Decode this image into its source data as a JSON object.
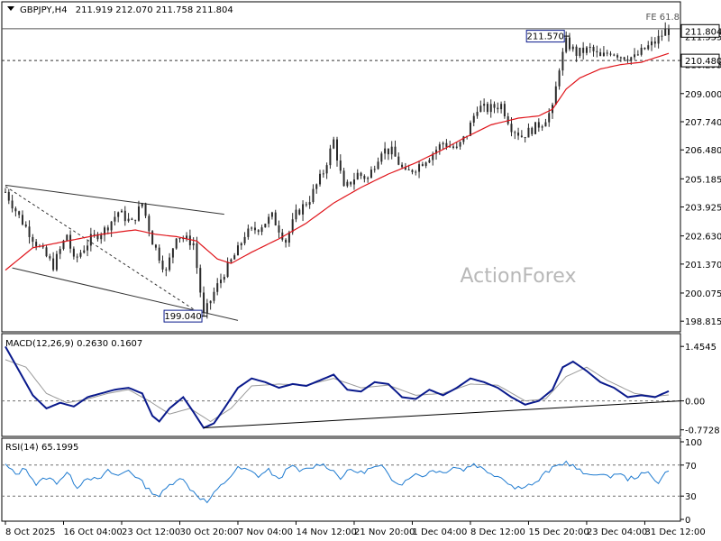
{
  "header": {
    "symbol": "GBPJPY,H4",
    "ohlc": "211.919 212.070 211.758 211.804"
  },
  "watermark": "ActionForex",
  "fib_label": "FE 61.8",
  "colors": {
    "candle": "#2a2a2a",
    "ma": "#e0151b",
    "macd": "#0a1a8c",
    "signal": "#9a9a9a",
    "rsi": "#1f7bd0",
    "grid_dash": "#707070",
    "axis_bg": "#ffffff"
  },
  "chart_data": [
    {
      "type": "candlestick",
      "panel": "price",
      "ylim": [
        198.5,
        212.3
      ],
      "y_ticks": [
        "211.555",
        "210.295",
        "209.000",
        "207.740",
        "206.480",
        "205.185",
        "203.925",
        "202.630",
        "201.370",
        "200.075",
        "198.815"
      ],
      "y_tick_values": [
        211.555,
        210.295,
        209.0,
        207.74,
        206.48,
        205.185,
        203.925,
        202.63,
        201.37,
        200.075,
        198.815
      ],
      "current_price_label": "211.804",
      "current_price": 211.804,
      "level_label": "210.480",
      "level_price": 210.48,
      "fib_level": 211.9,
      "annotations": [
        {
          "text": "211.570",
          "value": 211.57,
          "at_index": 164
        },
        {
          "text": "199.040",
          "value": 199.04,
          "at_index": 58
        }
      ],
      "x_tick_labels": [
        "8 Oct 2025",
        "16 Oct 04:00",
        "23 Oct 12:00",
        "30 Oct 20:00",
        "7 Nov 04:00",
        "14 Nov 12:00",
        "21 Nov 20:00",
        "1 Dec 04:00",
        "8 Dec 12:00",
        "15 Dec 20:00",
        "23 Dec 04:00",
        "31 Dec 12:00"
      ],
      "x_tick_indices": [
        0,
        17,
        34,
        51,
        68,
        85,
        102,
        119,
        136,
        153,
        170,
        187
      ],
      "anchors": [
        [
          0,
          204.6
        ],
        [
          4,
          203.5
        ],
        [
          9,
          202.3
        ],
        [
          14,
          201.3
        ],
        [
          18,
          202.7
        ],
        [
          20,
          201.5
        ],
        [
          25,
          202.5
        ],
        [
          29,
          202.9
        ],
        [
          33,
          203.7
        ],
        [
          37,
          203.2
        ],
        [
          40,
          204.1
        ],
        [
          43,
          202.4
        ],
        [
          47,
          201.0
        ],
        [
          50,
          202.7
        ],
        [
          55,
          202.3
        ],
        [
          58,
          199.05
        ],
        [
          61,
          200.1
        ],
        [
          64,
          201.0
        ],
        [
          68,
          202.0
        ],
        [
          70,
          202.7
        ],
        [
          74,
          203.0
        ],
        [
          78,
          203.5
        ],
        [
          82,
          202.4
        ],
        [
          85,
          203.6
        ],
        [
          89,
          204.3
        ],
        [
          93,
          205.5
        ],
        [
          96,
          206.9
        ],
        [
          99,
          204.7
        ],
        [
          103,
          205.4
        ],
        [
          106,
          205.2
        ],
        [
          110,
          206.5
        ],
        [
          113,
          206.4
        ],
        [
          117,
          205.4
        ],
        [
          120,
          205.7
        ],
        [
          124,
          206.2
        ],
        [
          128,
          206.8
        ],
        [
          132,
          206.5
        ],
        [
          135,
          207.2
        ],
        [
          138,
          208.4
        ],
        [
          141,
          208.3
        ],
        [
          145,
          208.5
        ],
        [
          148,
          207.5
        ],
        [
          151,
          207.1
        ],
        [
          154,
          207.4
        ],
        [
          157,
          207.7
        ],
        [
          160,
          208.3
        ],
        [
          162,
          210.2
        ],
        [
          164,
          211.3
        ],
        [
          167,
          210.8
        ],
        [
          171,
          211.0
        ],
        [
          174,
          210.6
        ],
        [
          177,
          210.9
        ],
        [
          180,
          210.7
        ],
        [
          184,
          210.6
        ],
        [
          187,
          211.0
        ],
        [
          190,
          211.3
        ],
        [
          193,
          211.8
        ]
      ],
      "moving_average": [
        [
          0,
          201.1
        ],
        [
          8,
          202.1
        ],
        [
          18,
          202.4
        ],
        [
          28,
          202.7
        ],
        [
          38,
          202.9
        ],
        [
          44,
          202.7
        ],
        [
          50,
          202.6
        ],
        [
          56,
          202.4
        ],
        [
          62,
          201.6
        ],
        [
          66,
          201.4
        ],
        [
          72,
          201.9
        ],
        [
          80,
          202.5
        ],
        [
          88,
          203.2
        ],
        [
          96,
          204.1
        ],
        [
          104,
          204.8
        ],
        [
          112,
          205.4
        ],
        [
          120,
          205.9
        ],
        [
          128,
          206.5
        ],
        [
          134,
          207.0
        ],
        [
          142,
          207.6
        ],
        [
          150,
          207.9
        ],
        [
          156,
          208.0
        ],
        [
          160,
          208.3
        ],
        [
          164,
          209.2
        ],
        [
          168,
          209.7
        ],
        [
          174,
          210.1
        ],
        [
          180,
          210.3
        ],
        [
          186,
          210.4
        ],
        [
          190,
          210.6
        ],
        [
          194,
          210.8
        ]
      ],
      "channel_lines": [
        {
          "from": [
            0,
            204.9
          ],
          "to": [
            64,
            203.6
          ],
          "style": "solid"
        },
        {
          "from": [
            2,
            201.2
          ],
          "to": [
            68,
            198.85
          ],
          "style": "solid"
        },
        {
          "from": [
            0,
            204.85
          ],
          "to": [
            58,
            199.05
          ],
          "style": "dashed"
        }
      ]
    },
    {
      "type": "line",
      "panel": "macd",
      "label": "MACD(12,26,9) 0.2630 0.1607",
      "ylim": [
        -0.9,
        1.7
      ],
      "y_ticks": [
        "1.4545",
        "0.00",
        "-0.7728"
      ],
      "y_tick_values": [
        1.4545,
        0.0,
        -0.7728
      ],
      "zero_line": 0.0,
      "macd_series": [
        [
          0,
          1.45
        ],
        [
          4,
          0.8
        ],
        [
          8,
          0.15
        ],
        [
          12,
          -0.2
        ],
        [
          16,
          -0.05
        ],
        [
          20,
          -0.15
        ],
        [
          24,
          0.1
        ],
        [
          28,
          0.2
        ],
        [
          32,
          0.3
        ],
        [
          36,
          0.35
        ],
        [
          40,
          0.2
        ],
        [
          43,
          -0.4
        ],
        [
          45,
          -0.55
        ],
        [
          48,
          -0.2
        ],
        [
          52,
          0.1
        ],
        [
          55,
          -0.3
        ],
        [
          58,
          -0.72
        ],
        [
          61,
          -0.6
        ],
        [
          64,
          -0.2
        ],
        [
          68,
          0.35
        ],
        [
          72,
          0.6
        ],
        [
          76,
          0.5
        ],
        [
          80,
          0.35
        ],
        [
          84,
          0.45
        ],
        [
          88,
          0.4
        ],
        [
          92,
          0.55
        ],
        [
          96,
          0.7
        ],
        [
          100,
          0.3
        ],
        [
          104,
          0.25
        ],
        [
          108,
          0.5
        ],
        [
          112,
          0.45
        ],
        [
          116,
          0.1
        ],
        [
          120,
          0.05
        ],
        [
          124,
          0.3
        ],
        [
          128,
          0.15
        ],
        [
          132,
          0.35
        ],
        [
          136,
          0.6
        ],
        [
          140,
          0.5
        ],
        [
          144,
          0.35
        ],
        [
          148,
          0.1
        ],
        [
          152,
          -0.1
        ],
        [
          156,
          0.0
        ],
        [
          160,
          0.3
        ],
        [
          163,
          0.9
        ],
        [
          166,
          1.05
        ],
        [
          170,
          0.8
        ],
        [
          174,
          0.5
        ],
        [
          178,
          0.35
        ],
        [
          182,
          0.1
        ],
        [
          186,
          0.15
        ],
        [
          190,
          0.1
        ],
        [
          194,
          0.26
        ]
      ],
      "signal_series": [
        [
          0,
          1.1
        ],
        [
          6,
          0.9
        ],
        [
          12,
          0.2
        ],
        [
          18,
          -0.05
        ],
        [
          24,
          0.05
        ],
        [
          30,
          0.2
        ],
        [
          36,
          0.3
        ],
        [
          42,
          0.0
        ],
        [
          48,
          -0.35
        ],
        [
          54,
          -0.2
        ],
        [
          60,
          -0.55
        ],
        [
          66,
          -0.2
        ],
        [
          72,
          0.4
        ],
        [
          80,
          0.45
        ],
        [
          88,
          0.42
        ],
        [
          96,
          0.6
        ],
        [
          104,
          0.35
        ],
        [
          112,
          0.42
        ],
        [
          120,
          0.15
        ],
        [
          128,
          0.2
        ],
        [
          136,
          0.45
        ],
        [
          144,
          0.42
        ],
        [
          152,
          0.0
        ],
        [
          158,
          0.05
        ],
        [
          164,
          0.65
        ],
        [
          170,
          0.9
        ],
        [
          176,
          0.55
        ],
        [
          184,
          0.2
        ],
        [
          190,
          0.12
        ],
        [
          194,
          0.16
        ]
      ],
      "trendline": {
        "from": [
          58,
          -0.72
        ],
        "to": [
          194,
          0.0
        ]
      }
    },
    {
      "type": "line",
      "panel": "rsi",
      "label": "RSI(14) 65.1995",
      "ylim": [
        0,
        100
      ],
      "y_ticks": [
        "100",
        "70",
        "30",
        "0"
      ],
      "y_tick_values": [
        100,
        70,
        30,
        0
      ],
      "dashed_levels": [
        70,
        30
      ],
      "rsi_series": [
        [
          0,
          70
        ],
        [
          3,
          58
        ],
        [
          6,
          66
        ],
        [
          9,
          45
        ],
        [
          12,
          54
        ],
        [
          15,
          48
        ],
        [
          18,
          60
        ],
        [
          21,
          42
        ],
        [
          24,
          55
        ],
        [
          27,
          50
        ],
        [
          30,
          62
        ],
        [
          33,
          56
        ],
        [
          36,
          64
        ],
        [
          39,
          52
        ],
        [
          42,
          38
        ],
        [
          45,
          30
        ],
        [
          48,
          44
        ],
        [
          51,
          55
        ],
        [
          54,
          40
        ],
        [
          57,
          28
        ],
        [
          59,
          22
        ],
        [
          62,
          38
        ],
        [
          65,
          52
        ],
        [
          68,
          66
        ],
        [
          71,
          63
        ],
        [
          74,
          56
        ],
        [
          77,
          64
        ],
        [
          80,
          50
        ],
        [
          83,
          70
        ],
        [
          86,
          62
        ],
        [
          89,
          65
        ],
        [
          92,
          72
        ],
        [
          95,
          66
        ],
        [
          98,
          54
        ],
        [
          101,
          64
        ],
        [
          104,
          60
        ],
        [
          107,
          66
        ],
        [
          110,
          68
        ],
        [
          113,
          52
        ],
        [
          116,
          46
        ],
        [
          119,
          58
        ],
        [
          122,
          56
        ],
        [
          125,
          64
        ],
        [
          128,
          60
        ],
        [
          131,
          68
        ],
        [
          134,
          64
        ],
        [
          137,
          72
        ],
        [
          140,
          64
        ],
        [
          143,
          58
        ],
        [
          146,
          52
        ],
        [
          149,
          40
        ],
        [
          152,
          44
        ],
        [
          155,
          46
        ],
        [
          158,
          60
        ],
        [
          161,
          68
        ],
        [
          164,
          74
        ],
        [
          167,
          66
        ],
        [
          170,
          56
        ],
        [
          173,
          60
        ],
        [
          176,
          54
        ],
        [
          179,
          60
        ],
        [
          182,
          52
        ],
        [
          185,
          56
        ],
        [
          188,
          60
        ],
        [
          191,
          48
        ],
        [
          194,
          65
        ]
      ]
    }
  ]
}
